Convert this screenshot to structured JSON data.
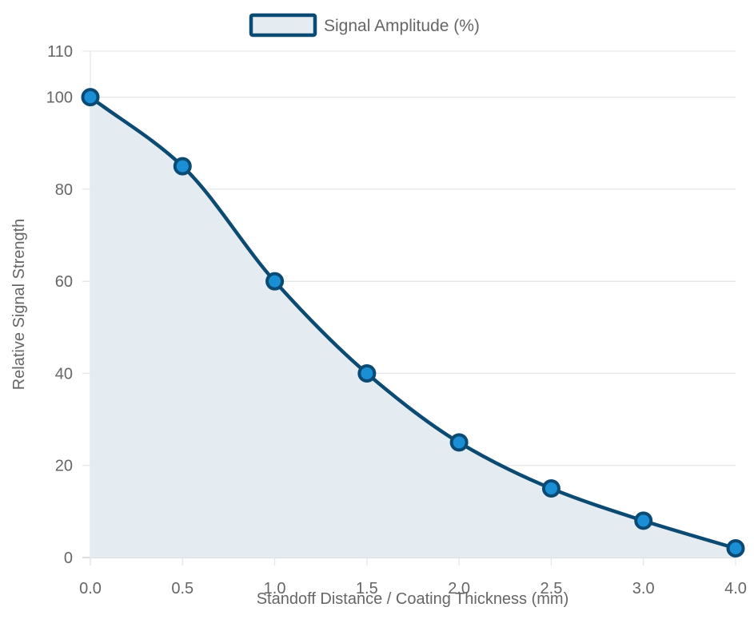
{
  "chart_data": {
    "type": "area",
    "x": [
      0.0,
      0.5,
      1.0,
      1.5,
      2.0,
      2.5,
      3.0,
      4.0
    ],
    "x_tick_labels": [
      "0.0",
      "0.5",
      "1.0",
      "1.5",
      "2.0",
      "2.5",
      "3.0",
      "4.0"
    ],
    "y_ticks": [
      0,
      20,
      40,
      60,
      80,
      100,
      110
    ],
    "y_tick_labels": [
      "0",
      "20",
      "40",
      "60",
      "80",
      "100",
      "110"
    ],
    "ylim": [
      0,
      110
    ],
    "xlabel": "Standoff Distance / Coating Thickness (mm)",
    "ylabel": "Relative Signal Strength",
    "grid": true,
    "legend_position": "top-center",
    "x_axis": "category",
    "series": [
      {
        "name": "Signal Amplitude (%)",
        "values": [
          100,
          85,
          60,
          40,
          25,
          15,
          8,
          2
        ],
        "line_color": "#0b4a72",
        "fill_color": "#e5ecf1",
        "marker_color": "#1a8fd6"
      }
    ]
  }
}
